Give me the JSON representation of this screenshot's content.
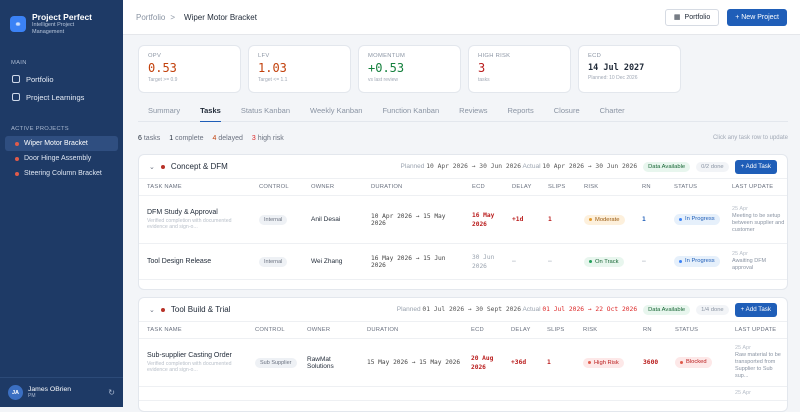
{
  "app": {
    "name": "Project Perfect",
    "tagline": "Intelligent Project Management"
  },
  "sidebar": {
    "main_label": "MAIN",
    "main_items": [
      {
        "label": "Portfolio",
        "icon": "grid-icon"
      },
      {
        "label": "Project Learnings",
        "icon": "book-icon"
      }
    ],
    "active_label": "ACTIVE PROJECTS",
    "projects": [
      {
        "label": "Wiper Motor Bracket"
      },
      {
        "label": "Door Hinge Assembly"
      },
      {
        "label": "Steering Column Bracket"
      }
    ],
    "user": {
      "initials": "JA",
      "name": "James OBrien",
      "role": "PM"
    }
  },
  "topbar": {
    "crumb_root": "Portfolio",
    "crumb_sep": ">",
    "crumb_current": "Wiper Motor Bracket",
    "portfolio_btn": "Portfolio",
    "new_project_btn": "+ New Project"
  },
  "kpis": [
    {
      "label": "OPV",
      "value": "0.53",
      "sub": "Target >= 0.9",
      "color": "#c2410c"
    },
    {
      "label": "LFV",
      "value": "1.03",
      "sub": "Target <= 1.1",
      "color": "#c2410c"
    },
    {
      "label": "MOMENTUM",
      "value": "+0.53",
      "sub": "vs last review",
      "color": "#15803d"
    },
    {
      "label": "HIGH RISK",
      "value": "3",
      "sub": "tasks",
      "color": "#b91c1c"
    },
    {
      "label": "ECD",
      "value": "14 Jul 2027",
      "sub": "Planned: 10 Dec 2026",
      "color": "#1f2937"
    }
  ],
  "tabs": [
    "Summary",
    "Tasks",
    "Status Kanban",
    "Weekly Kanban",
    "Function Kanban",
    "Reviews",
    "Reports",
    "Closure",
    "Charter"
  ],
  "summary": {
    "tasks_n": "6",
    "tasks_t": "tasks",
    "complete_n": "1",
    "complete_t": "complete",
    "delayed_n": "4",
    "delayed_t": "delayed",
    "high_n": "3",
    "high_t": "high risk",
    "hint": "Click any task row to update"
  },
  "columns": [
    "TASK NAME",
    "CONTROL",
    "OWNER",
    "DURATION",
    "ECD",
    "DELAY",
    "SLIPS",
    "RISK",
    "RN",
    "STATUS",
    "LAST UPDATE"
  ],
  "phases": [
    {
      "name": "Concept & DFM",
      "planned_label": "Planned",
      "planned": "10 Apr 2026 → 30 Jun 2026",
      "actual_label": "Actual",
      "actual": "10 Apr 2026 → 30 Jun 2026",
      "data_pill": "Data Available",
      "done_pill": "0/2 done",
      "add": "+ Add Task",
      "tasks": [
        {
          "name": "DFM Study & Approval",
          "sub": "Verified completion with documented evidence and sign-o...",
          "control": "Internal",
          "owner": "Anil Desai",
          "duration": "10 Apr 2026 → 15 May 2026",
          "ecd": "16 May 2026",
          "delay": "+1d",
          "slips": "1",
          "risk": "Moderate",
          "rn": "1",
          "status": "In Progress",
          "lu_date": "25 Apr",
          "lu_text": "Meeting to be setup between supplier and customer"
        },
        {
          "name": "Tool Design Release",
          "sub": "",
          "control": "Internal",
          "owner": "Wei Zhang",
          "duration": "16 May 2026 → 15 Jun 2026",
          "ecd": "30 Jun 2026",
          "delay": "—",
          "slips": "—",
          "risk": "On Track",
          "rn": "—",
          "status": "In Progress",
          "lu_date": "25 Apr",
          "lu_text": "Awaiting DFM approval"
        }
      ]
    },
    {
      "name": "Tool Build & Trial",
      "planned_label": "Planned",
      "planned": "01 Jul 2026 → 30 Sept 2026",
      "actual_label": "Actual",
      "actual": "01 Jul 2026 → 22 Oct 2026",
      "data_pill": "Data Available",
      "done_pill": "1/4 done",
      "add": "+ Add Task",
      "tasks": [
        {
          "name": "Sub-supplier Casting Order",
          "sub": "Verified completion with documented evidence and sign-o...",
          "control": "Sub Supplier",
          "owner": "RawMat Solutions",
          "duration": "15 May 2026 → 15 May 2026",
          "ecd": "20 Aug 2026",
          "delay": "+36d",
          "slips": "1",
          "risk": "High Risk",
          "rn": "3600",
          "status": "Blocked",
          "lu_date": "25 Apr",
          "lu_text": "Raw material to be transported from Supplier to Sub sup..."
        },
        {
          "name": "",
          "lu_date": "25 Apr"
        }
      ]
    }
  ],
  "colors": {
    "accent": "#1f5eb8",
    "sidebar": "#1e3a66"
  }
}
